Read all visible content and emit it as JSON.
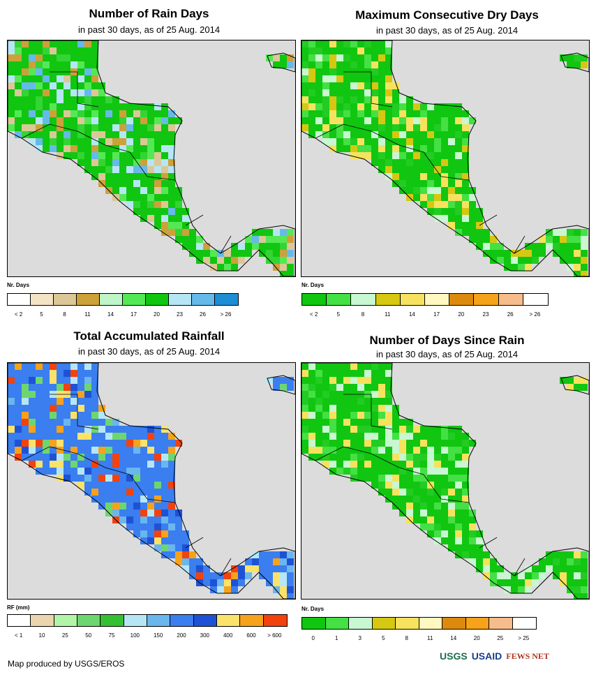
{
  "panels": [
    {
      "title": "Number of Rain Days",
      "subtitle": "in past 30 days, as of 25 Aug. 2014",
      "legend_title": "Nr. Days",
      "legend_colors": [
        "#ffffff",
        "#f5e3c6",
        "#dcc797",
        "#cda13a",
        "#bff5c8",
        "#55e855",
        "#10c610",
        "#b6e6f6",
        "#66baea",
        "#1c8ed6"
      ],
      "legend_labels": [
        "< 2",
        "5",
        "8",
        "11",
        "14",
        "17",
        "20",
        "23",
        "26",
        "> 26"
      ],
      "palette": [
        "#10c610",
        "#33d433",
        "#55e855",
        "#b6e6f6",
        "#66baea",
        "#cda13a",
        "#dcc797"
      ]
    },
    {
      "title": "Maximum Consecutive Dry Days",
      "subtitle": "in past 30 days, as of 25 Aug. 2014",
      "legend_title": "Nr. Days",
      "legend_colors": [
        "#10c610",
        "#44e044",
        "#c8f7d2",
        "#d6c812",
        "#f6e25e",
        "#fff8c0",
        "#dc8a0e",
        "#f6a21a",
        "#f6bc8c",
        "#ffffff"
      ],
      "legend_labels": [
        "< 2",
        "5",
        "8",
        "11",
        "14",
        "17",
        "20",
        "23",
        "26",
        "> 26"
      ],
      "palette": [
        "#10c610",
        "#22cc22",
        "#44e044",
        "#c8f7d2",
        "#f6e25e",
        "#d6c812"
      ]
    },
    {
      "title": "Total Accumulated Rainfall",
      "subtitle": "in past 30 days, as of 25 Aug. 2014",
      "legend_title": "RF (mm)",
      "legend_colors": [
        "#ffffff",
        "#ecd4ae",
        "#b3f5a8",
        "#6ed66e",
        "#33c033",
        "#b6e6f6",
        "#6ab6ee",
        "#3a7ef0",
        "#1d52d6",
        "#fbe26a",
        "#f6a21a",
        "#f2420e"
      ],
      "legend_labels": [
        "< 1",
        "10",
        "25",
        "50",
        "75",
        "100",
        "150",
        "200",
        "300",
        "400",
        "600",
        "> 600"
      ],
      "palette": [
        "#3a7ef0",
        "#1d52d6",
        "#6ab6ee",
        "#f6a21a",
        "#fbe26a",
        "#b6e6f6",
        "#f2420e",
        "#6ed66e"
      ]
    },
    {
      "title": "Number of Days Since Rain",
      "subtitle": "in past 30 days, as of 25 Aug. 2014",
      "legend_title": "Nr. Days",
      "legend_colors": [
        "#10c610",
        "#44e044",
        "#c8f7d2",
        "#d6c812",
        "#f6e25e",
        "#fff8c0",
        "#dc8a0e",
        "#f6a21a",
        "#f6bc8c",
        "#ffffff"
      ],
      "legend_labels": [
        "0",
        "1",
        "3",
        "5",
        "8",
        "11",
        "14",
        "20",
        "25",
        "> 25"
      ],
      "palette": [
        "#10c610",
        "#22cc22",
        "#44e044",
        "#c8f7d2",
        "#f6e25e"
      ]
    }
  ],
  "footer": "Map produced by USGS/EROS",
  "logos": [
    "USGS",
    "USAID",
    "FEWS NET"
  ],
  "colors": {
    "ocean": "#dcdcdc",
    "usgs": "#1a6e4c",
    "usaid": "#1a3c8c",
    "fews": "#b0341c"
  }
}
